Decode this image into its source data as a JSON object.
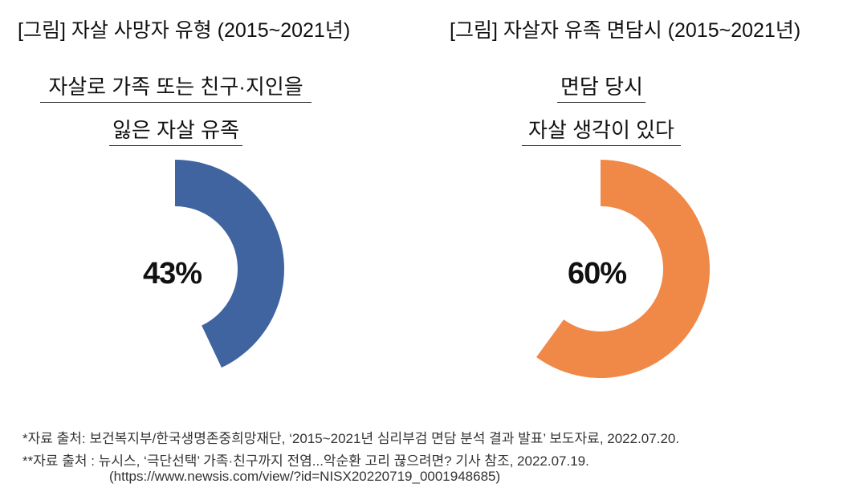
{
  "chart_data": [
    {
      "type": "pie",
      "variant": "donut",
      "figure_title": "[그림] 자살 사망자 유형 (2015~2021년)",
      "subtitle_lines": [
        "자살로 가족 또는 친구·지인을",
        "잃은 자살 유족"
      ],
      "value": 43,
      "label": "43%",
      "color": "#4064A0"
    },
    {
      "type": "pie",
      "variant": "donut",
      "figure_title": "[그림] 자살자 유족 면담시 (2015~2021년)",
      "subtitle_lines": [
        "면담 당시",
        "자살 생각이 있다"
      ],
      "value": 60,
      "label": "60%",
      "color": "#F08848"
    }
  ],
  "notes": [
    "*자료 출처: 보건복지부/한국생명존중희망재단, ‘2015~2021년 심리부검 면담 분석 결과 발표’ 보도자료, 2022.07.20.",
    "**자료 출처 : 뉴시스, ‘극단선택’ 가족·친구까지 전염...악순환 고리 끊으려면? 기사 참조, 2022.07.19.",
    "(https://www.newsis.com/view/?id=NISX20220719_0001948685)"
  ]
}
